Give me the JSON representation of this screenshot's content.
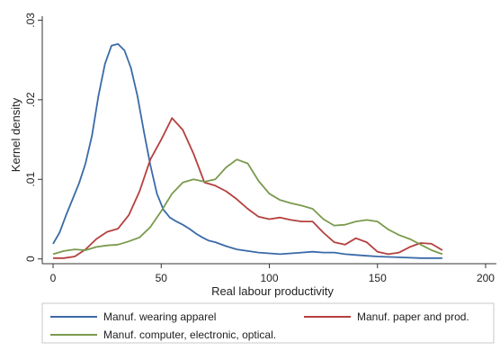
{
  "chart_data": {
    "type": "line",
    "title": "",
    "xlabel": "Real labour productivity",
    "ylabel": "Kernel density",
    "xlim": [
      -5,
      205
    ],
    "ylim": [
      -0.0006,
      0.0305
    ],
    "x_ticks": [
      0,
      50,
      100,
      150,
      200
    ],
    "x_tick_labels": [
      "0",
      "50",
      "100",
      "150",
      "200"
    ],
    "y_ticks": [
      0,
      0.01,
      0.02,
      0.03
    ],
    "y_tick_labels": [
      "0",
      ".01",
      ".02",
      ".03"
    ],
    "grid": false,
    "legend_position": "bottom",
    "series": [
      {
        "name": "Manuf. wearing apparel",
        "color": "#3a6aa8",
        "x": [
          0,
          3,
          6,
          9,
          12,
          15,
          18,
          21,
          24,
          27,
          30,
          33,
          36,
          39,
          42,
          45,
          48,
          51,
          54,
          57,
          60,
          63,
          66,
          69,
          72,
          75,
          80,
          85,
          90,
          95,
          100,
          105,
          110,
          115,
          120,
          125,
          130,
          135,
          140,
          145,
          150,
          160,
          170,
          180
        ],
        "y": [
          0.0019,
          0.0033,
          0.0055,
          0.0075,
          0.0095,
          0.012,
          0.0155,
          0.0205,
          0.0245,
          0.0268,
          0.027,
          0.0262,
          0.024,
          0.0205,
          0.016,
          0.0118,
          0.0082,
          0.0062,
          0.0052,
          0.0047,
          0.0043,
          0.0038,
          0.0032,
          0.0027,
          0.0023,
          0.0021,
          0.0016,
          0.0012,
          0.001,
          0.0008,
          0.0007,
          0.0006,
          0.0007,
          0.0008,
          0.0009,
          0.0008,
          0.0008,
          0.0006,
          0.0005,
          0.0004,
          0.0003,
          0.0002,
          0.0001,
          0.0001
        ]
      },
      {
        "name": "Manuf. paper and prod.",
        "color": "#b5403f",
        "x": [
          0,
          5,
          10,
          15,
          20,
          25,
          30,
          35,
          40,
          45,
          50,
          55,
          60,
          65,
          70,
          75,
          80,
          85,
          90,
          95,
          100,
          105,
          110,
          115,
          120,
          125,
          130,
          135,
          140,
          145,
          150,
          155,
          160,
          165,
          170,
          175,
          180
        ],
        "y": [
          0.0001,
          0.0001,
          0.0003,
          0.0012,
          0.0025,
          0.0034,
          0.0038,
          0.0055,
          0.0085,
          0.0125,
          0.015,
          0.0177,
          0.0162,
          0.0132,
          0.0096,
          0.0092,
          0.0085,
          0.0075,
          0.0063,
          0.0053,
          0.005,
          0.0052,
          0.0049,
          0.0047,
          0.0047,
          0.0033,
          0.0021,
          0.0018,
          0.0026,
          0.0021,
          0.0009,
          0.0006,
          0.0008,
          0.0015,
          0.002,
          0.0019,
          0.0011
        ]
      },
      {
        "name": "Manuf. computer, electronic, optical.",
        "color": "#7a9a4d",
        "x": [
          0,
          5,
          10,
          15,
          20,
          25,
          30,
          35,
          40,
          45,
          50,
          55,
          60,
          65,
          70,
          75,
          80,
          85,
          90,
          95,
          100,
          105,
          110,
          115,
          120,
          125,
          130,
          135,
          140,
          145,
          150,
          155,
          160,
          165,
          170,
          175,
          180
        ],
        "y": [
          0.0006,
          0.001,
          0.0012,
          0.0011,
          0.0015,
          0.0017,
          0.0018,
          0.0022,
          0.0027,
          0.004,
          0.006,
          0.0082,
          0.0096,
          0.01,
          0.0097,
          0.01,
          0.0115,
          0.0125,
          0.012,
          0.0098,
          0.0082,
          0.0074,
          0.007,
          0.0067,
          0.0063,
          0.005,
          0.0042,
          0.0043,
          0.0047,
          0.0049,
          0.0047,
          0.0037,
          0.003,
          0.0025,
          0.0018,
          0.0011,
          0.0006
        ]
      }
    ]
  }
}
